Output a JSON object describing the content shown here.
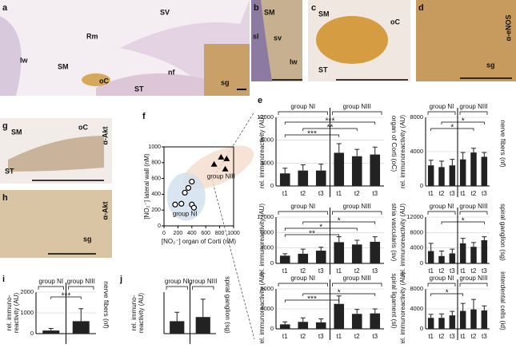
{
  "panel_labels": [
    "a",
    "b",
    "c",
    "d",
    "e",
    "f",
    "g",
    "h",
    "i",
    "j"
  ],
  "images": {
    "a": [
      "SV",
      "Rm",
      "SM",
      "lw",
      "oC",
      "nf",
      "ST",
      "sg"
    ],
    "b": [
      "SM",
      "sl",
      "sv",
      "lw"
    ],
    "c": [
      "SM",
      "oC",
      "ST"
    ],
    "d": [
      "α-eNOS",
      "sg"
    ],
    "g": [
      "SM",
      "oC",
      "ST",
      "α-Akt"
    ],
    "h": [
      "sg",
      "α-Akt"
    ]
  },
  "chart_data": [
    {
      "type": "bar",
      "ylabel": "rel. immunoreactivity (AU)",
      "side_label": "organ of Corti (oC)",
      "groups": [
        "group NI",
        "group NIII"
      ],
      "categories": [
        "t1",
        "t2",
        "t3",
        "t1",
        "t2",
        "t3"
      ],
      "values": [
        2200,
        2700,
        2700,
        5800,
        5200,
        5500
      ],
      "errors": [
        900,
        1000,
        1100,
        1600,
        1200,
        1300
      ],
      "ylim": [
        0,
        12000
      ],
      "yticks": [
        0,
        4000,
        8000,
        12000
      ],
      "grid": true,
      "significance": [
        "***",
        "**",
        "***"
      ],
      "color": "#222222"
    },
    {
      "type": "bar",
      "ylabel": "rel. immunoreactivity (AU)",
      "side_label": "nerve fibers (nf)",
      "groups": [
        "group NI",
        "group NIII"
      ],
      "categories": [
        "t1",
        "t2",
        "t3",
        "t1",
        "t2",
        "t3"
      ],
      "values": [
        2400,
        2200,
        2400,
        3100,
        3900,
        3400
      ],
      "errors": [
        600,
        700,
        700,
        800,
        500,
        500
      ],
      "ylim": [
        0,
        8000
      ],
      "yticks": [
        0,
        4000,
        8000
      ],
      "grid": true,
      "significance": [
        "*",
        "*"
      ],
      "color": "#222222"
    },
    {
      "type": "bar",
      "ylabel": "rel. immunoreactivity (AU)",
      "side_label": "stria vascularis (sv)",
      "groups": [
        "group NI",
        "group NIII"
      ],
      "categories": [
        "t1",
        "t2",
        "t3",
        "t1",
        "t2",
        "t3"
      ],
      "values": [
        2000,
        2500,
        3300,
        5500,
        4900,
        5600
      ],
      "errors": [
        500,
        1200,
        900,
        1400,
        1100,
        1300
      ],
      "ylim": [
        0,
        12000
      ],
      "yticks": [
        0,
        4000,
        8000,
        12000
      ],
      "grid": true,
      "significance": [
        "*",
        "*",
        "**"
      ],
      "color": "#222222"
    },
    {
      "type": "bar",
      "ylabel": "rel. immunoreactivity (AU)",
      "side_label": "spiral ganglion (sg)",
      "groups": [
        "group NI",
        "group NIII"
      ],
      "categories": [
        "t1",
        "t2",
        "t3",
        "t1",
        "t2",
        "t3"
      ],
      "values": [
        3200,
        1900,
        2600,
        5200,
        4300,
        6000
      ],
      "errors": [
        2000,
        1300,
        1100,
        1300,
        1100,
        900
      ],
      "ylim": [
        0,
        12000
      ],
      "yticks": [
        0,
        4000,
        8000,
        12000
      ],
      "grid": true,
      "significance": [
        "*"
      ],
      "color": "#222222"
    },
    {
      "type": "bar",
      "ylabel": "rel. immunoreactivity (AU)",
      "side_label": "spiral ligament (sl)",
      "groups": [
        "group NI",
        "group NIII"
      ],
      "categories": [
        "t1",
        "t2",
        "t3",
        "t1",
        "t2",
        "t3"
      ],
      "values": [
        900,
        1400,
        1300,
        5000,
        3000,
        3100
      ],
      "errors": [
        500,
        800,
        700,
        1600,
        900,
        900
      ],
      "ylim": [
        0,
        8000
      ],
      "yticks": [
        0,
        4000,
        8000
      ],
      "grid": true,
      "significance": [
        "*",
        "***"
      ],
      "color": "#222222"
    },
    {
      "type": "bar",
      "ylabel": "rel. immunoreactivity (AU)",
      "side_label": "interdental cells (id)",
      "groups": [
        "group NI",
        "group NIII"
      ],
      "categories": [
        "t1",
        "t2",
        "t3",
        "t1",
        "t2",
        "t3"
      ],
      "values": [
        2200,
        2200,
        2700,
        3600,
        3900,
        3700
      ],
      "errors": [
        700,
        800,
        800,
        1500,
        2000,
        900
      ],
      "ylim": [
        0,
        8000
      ],
      "yticks": [
        0,
        4000,
        8000
      ],
      "grid": true,
      "significance": [
        "*"
      ],
      "color": "#222222"
    },
    {
      "type": "bar",
      "ylabel": [
        "rel. immuno-",
        "reactivity (AU)"
      ],
      "side_label": "nerve fibers (nf)",
      "groups": [
        "group NI",
        "group NIII"
      ],
      "categories": [
        null,
        null
      ],
      "values": [
        150,
        600
      ],
      "errors": [
        100,
        600
      ],
      "ylim": [
        0,
        2000
      ],
      "yticks": [
        0,
        1000,
        2000
      ],
      "grid": true,
      "significance": [
        "***"
      ],
      "color": "#222222"
    },
    {
      "type": "bar",
      "ylabel": [
        "rel. immuno-",
        "reactivity (AU)"
      ],
      "side_label": "spiral ganglion (sg)",
      "groups": [
        "group NI",
        "group NIII"
      ],
      "categories": [
        null,
        null
      ],
      "values": [
        2100,
        2800
      ],
      "errors": [
        1500,
        3000
      ],
      "ylim": [
        0,
        7000
      ],
      "grid": true,
      "color": "#222222"
    },
    {
      "type": "scatter",
      "xlabel": "[NO₂⁻] organ of Corti (nM)",
      "ylabel": "[NO₂⁻] lateral wall (nM)",
      "xlim": [
        0,
        1000
      ],
      "ylim": [
        0,
        1000
      ],
      "xticks": [
        0,
        200,
        400,
        600,
        800,
        1000
      ],
      "yticks": [
        0,
        200,
        400,
        600,
        800,
        1000
      ],
      "series": [
        {
          "name": "group NI",
          "color": "#000000",
          "x": [
            300,
            350,
            400,
            160,
            250,
            400,
            430
          ],
          "y": [
            420,
            480,
            560,
            270,
            280,
            270,
            230
          ]
        },
        {
          "name": "group NIII",
          "color": "#000000",
          "x": [
            720,
            820,
            880,
            900
          ],
          "y": [
            780,
            870,
            720,
            850
          ]
        }
      ]
    }
  ]
}
